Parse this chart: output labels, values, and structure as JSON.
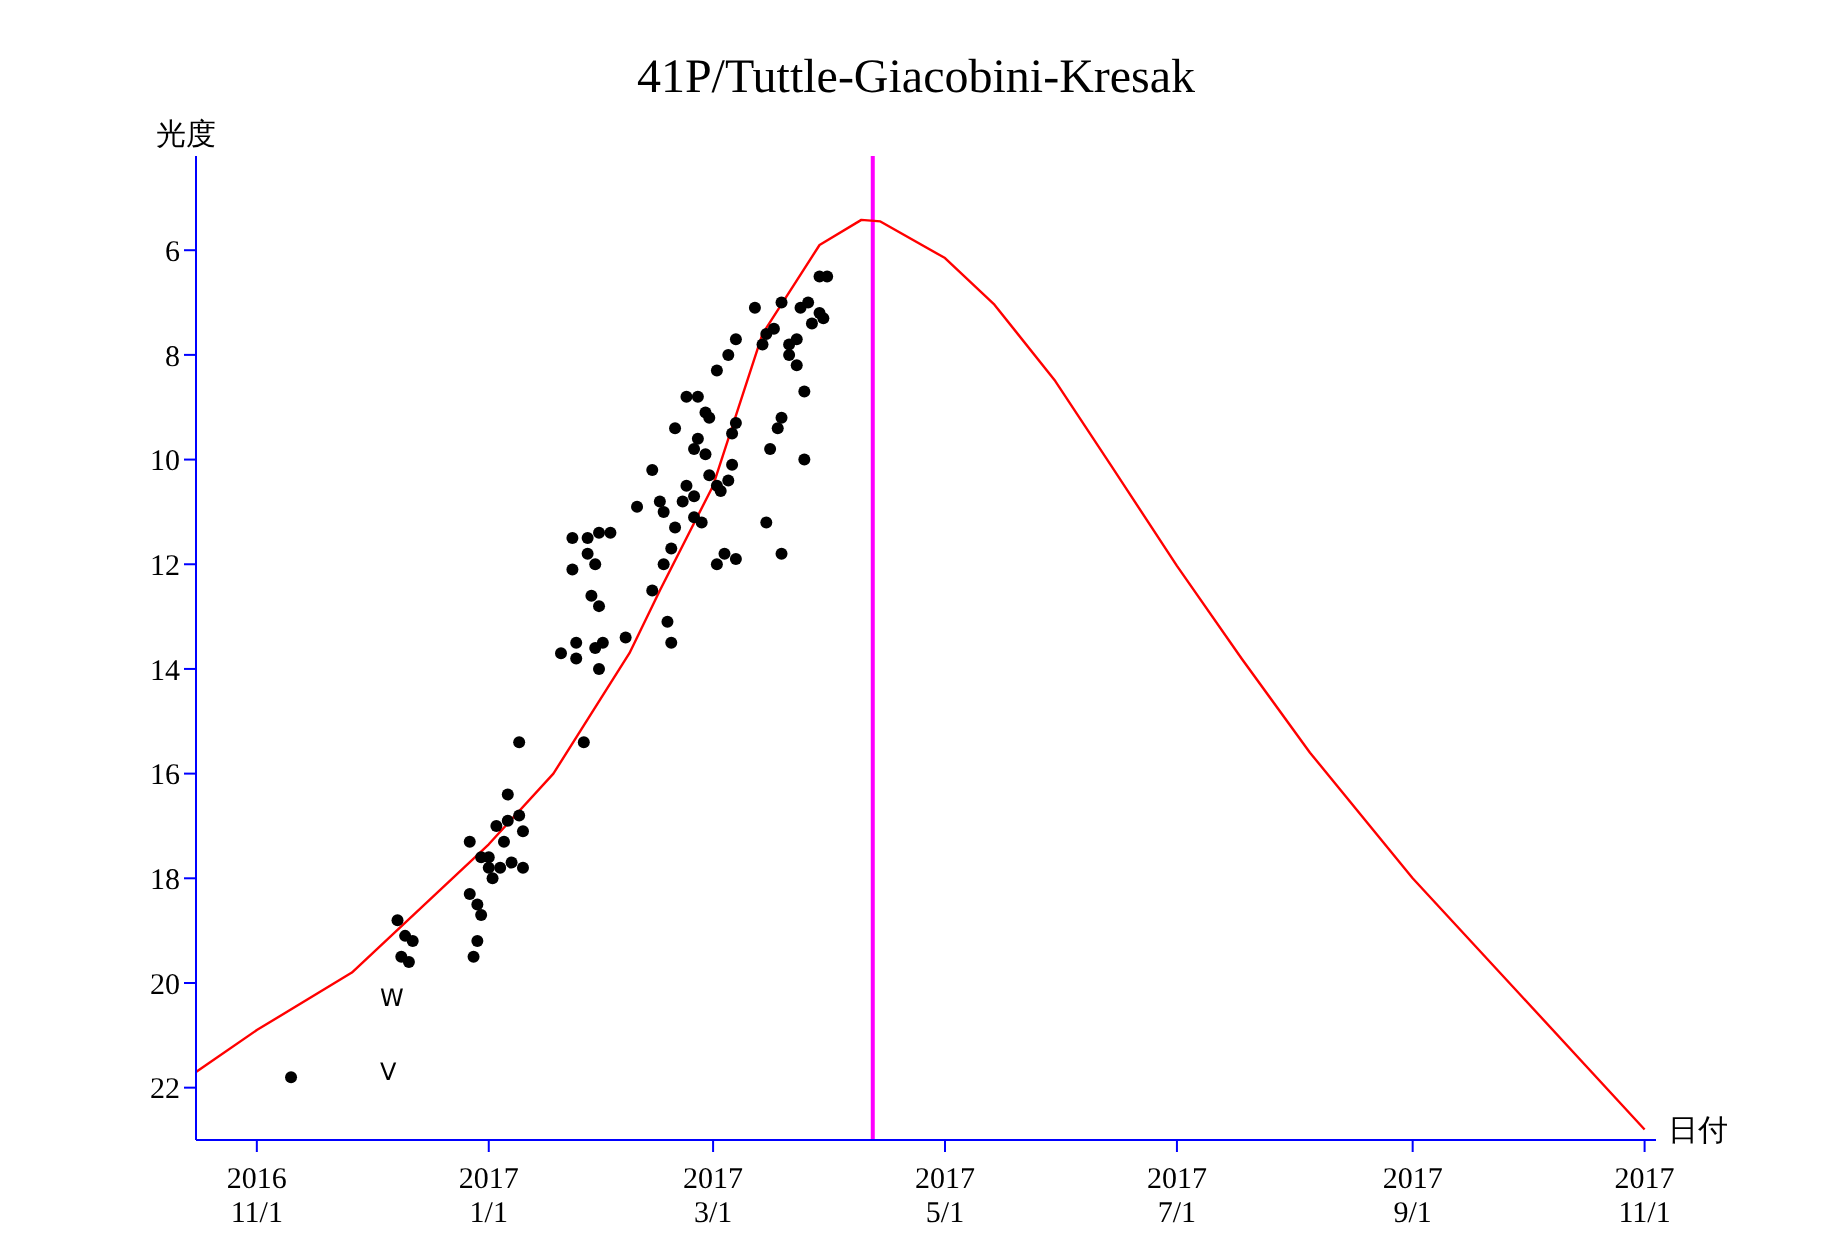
{
  "chart_data": {
    "type": "scatter",
    "title": "41P/Tuttle-Giacobini-Kresak",
    "xlabel": "日付",
    "ylabel": "光度",
    "xlim": [
      "2016-10-16",
      "2017-11-04"
    ],
    "xticks": [
      {
        "value": "2016-11-01",
        "label": "2016\n11/1"
      },
      {
        "value": "2017-01-01",
        "label": "2017\n1/1"
      },
      {
        "value": "2017-03-01",
        "label": "2017\n3/1"
      },
      {
        "value": "2017-05-01",
        "label": "2017\n5/1"
      },
      {
        "value": "2017-07-01",
        "label": "2017\n7/1"
      },
      {
        "value": "2017-09-01",
        "label": "2017\n9/1"
      },
      {
        "value": "2017-11-01",
        "label": "2017\n11/1"
      }
    ],
    "ylim": [
      23,
      4.2
    ],
    "yticks": [
      6,
      8,
      10,
      12,
      14,
      16,
      18,
      20,
      22
    ],
    "grid": false,
    "legend": false,
    "series": [
      {
        "color": "#000000",
        "marker": "circle",
        "x": [
          "2016-11-10",
          "2016-12-08",
          "2016-12-10",
          "2016-12-09",
          "2016-12-11",
          "2016-12-12",
          "2016-12-27",
          "2016-12-27",
          "2016-12-29",
          "2016-12-30",
          "2016-12-28",
          "2016-12-29",
          "2016-12-30",
          "2017-01-01",
          "2017-01-02",
          "2017-01-04",
          "2017-01-01",
          "2017-01-05",
          "2017-01-03",
          "2017-01-06",
          "2017-01-06",
          "2017-01-09",
          "2017-01-10",
          "2017-01-10",
          "2017-01-09",
          "2017-01-07",
          "2017-01-26",
          "2017-01-20",
          "2017-01-24",
          "2017-01-24",
          "2017-01-29",
          "2017-01-31",
          "2017-01-30",
          "2017-02-06",
          "2017-01-23",
          "2017-01-27",
          "2017-01-30",
          "2017-02-02",
          "2017-01-23",
          "2017-01-27",
          "2017-01-29",
          "2017-01-28",
          "2017-01-30",
          "2017-02-09",
          "2017-02-13",
          "2017-02-15",
          "2017-02-16",
          "2017-02-18",
          "2017-02-16",
          "2017-02-17",
          "2017-02-18",
          "2017-02-13",
          "2017-02-19",
          "2017-02-21",
          "2017-02-22",
          "2017-02-22",
          "2017-02-25",
          "2017-02-19",
          "2017-02-24",
          "2017-02-25",
          "2017-02-28",
          "2017-03-02",
          "2017-03-05",
          "2017-03-07",
          "2017-02-27",
          "2017-02-28",
          "2017-03-02",
          "2017-03-03",
          "2017-03-05",
          "2017-03-06",
          "2017-03-06",
          "2017-03-07",
          "2017-02-24",
          "2017-02-26",
          "2017-03-02",
          "2017-03-04",
          "2017-03-07",
          "2017-02-24",
          "2017-02-27",
          "2017-03-12",
          "2017-03-15",
          "2017-03-19",
          "2017-03-16",
          "2017-03-18",
          "2017-03-19",
          "2017-03-14",
          "2017-03-17",
          "2017-03-15",
          "2017-03-19",
          "2017-03-21",
          "2017-03-23",
          "2017-03-25",
          "2017-03-25",
          "2017-03-26",
          "2017-03-27",
          "2017-03-29",
          "2017-03-29",
          "2017-03-31",
          "2017-03-30",
          "2017-03-23",
          "2017-03-24",
          "2017-03-21"
        ],
        "values": [
          21.8,
          18.8,
          19.1,
          19.5,
          19.6,
          19.2,
          17.3,
          18.3,
          18.5,
          18.7,
          19.5,
          19.2,
          17.6,
          17.8,
          18.0,
          17.8,
          17.6,
          17.3,
          17.0,
          16.4,
          16.9,
          16.8,
          17.1,
          17.8,
          15.4,
          17.7,
          15.4,
          13.7,
          13.5,
          13.8,
          13.6,
          13.5,
          14.0,
          13.4,
          11.5,
          11.5,
          11.4,
          11.4,
          12.1,
          11.8,
          12.0,
          12.6,
          12.8,
          10.9,
          10.2,
          10.8,
          11.0,
          11.7,
          12.0,
          13.1,
          13.5,
          12.5,
          11.3,
          10.8,
          10.5,
          8.8,
          8.8,
          9.4,
          9.8,
          9.6,
          9.2,
          8.3,
          8.0,
          7.7,
          9.1,
          10.3,
          10.5,
          10.6,
          10.4,
          10.1,
          9.5,
          9.3,
          11.1,
          11.2,
          12.0,
          11.8,
          11.9,
          10.7,
          9.9,
          7.1,
          11.2,
          11.8,
          9.8,
          9.4,
          9.2,
          7.8,
          7.5,
          7.6,
          7.0,
          7.8,
          8.2,
          8.7,
          10.0,
          7.0,
          7.4,
          7.2,
          6.5,
          6.5,
          7.3,
          7.7,
          7.1,
          8.0
        ]
      },
      {
        "type": "line",
        "color": "#ff0000",
        "marker": "none",
        "x": [
          "2016-10-16",
          "2016-11-01",
          "2016-11-26",
          "2017-01-01",
          "2017-01-18",
          "2017-02-07",
          "2017-02-15",
          "2017-03-01",
          "2017-03-14",
          "2017-03-29",
          "2017-04-09",
          "2017-04-14",
          "2017-05-01",
          "2017-05-14",
          "2017-05-30",
          "2017-06-14",
          "2017-07-01",
          "2017-07-18",
          "2017-08-05",
          "2017-09-01",
          "2017-09-29",
          "2017-11-01"
        ],
        "values": [
          21.7,
          20.9,
          19.8,
          17.35,
          16.0,
          13.7,
          12.5,
          10.5,
          7.6,
          5.9,
          5.42,
          5.45,
          6.15,
          7.04,
          8.5,
          10.15,
          12.03,
          13.8,
          15.6,
          18.0,
          20.2,
          22.8
        ]
      }
    ],
    "ref_lines": [
      {
        "axis": "x",
        "value": "2017-04-12",
        "color": "#ff00ff"
      }
    ],
    "annotations": [
      "W",
      "V"
    ]
  }
}
